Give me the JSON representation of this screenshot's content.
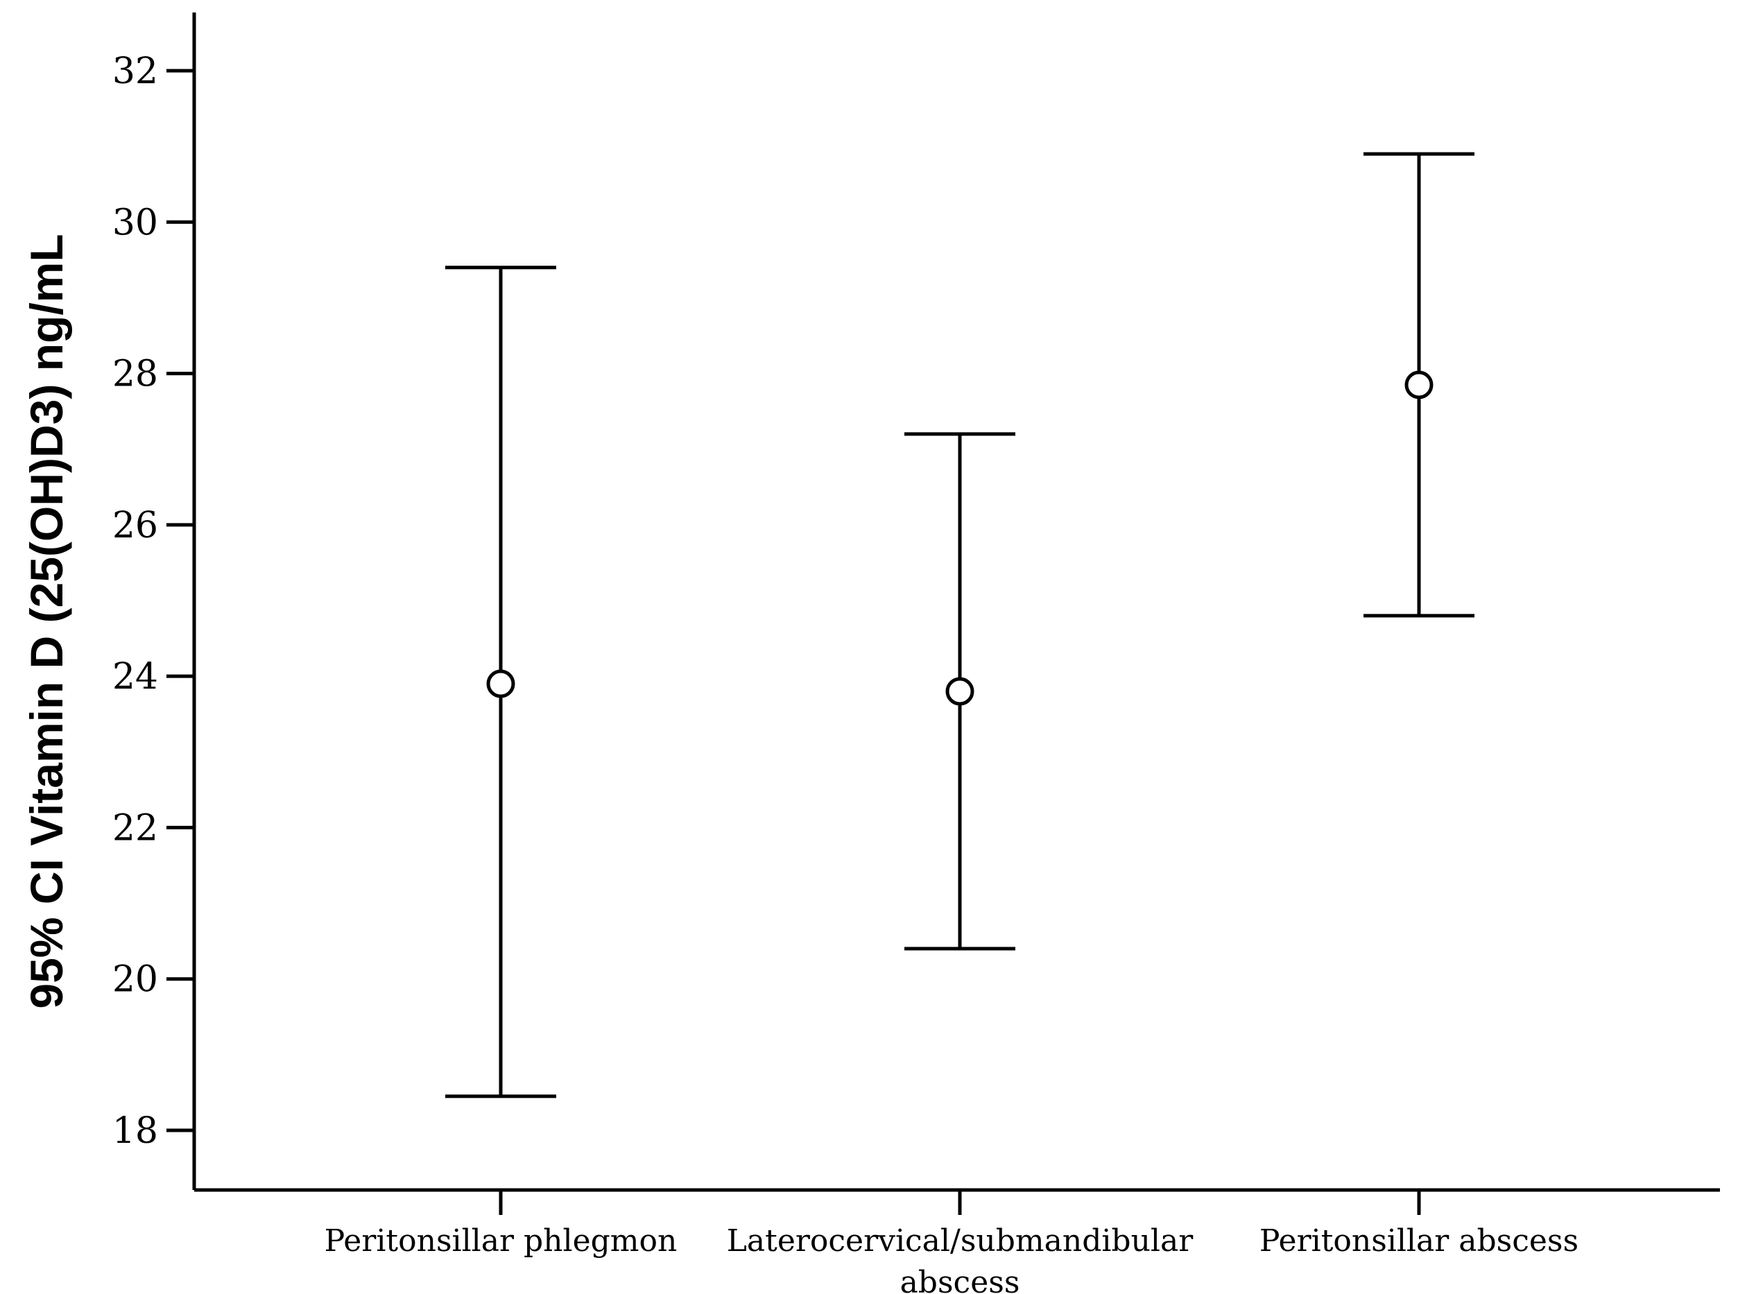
{
  "chart_data": {
    "type": "errorbar",
    "ylabel": "95% CI Vitamin D (25(OH)D3) ng/mL",
    "ylim": [
      17,
      32.8
    ],
    "yticks": [
      18,
      20,
      22,
      24,
      26,
      28,
      30,
      32
    ],
    "categories": [
      [
        "Peritonsillar phlegmon"
      ],
      [
        "Laterocervical/submandibular",
        "abscess"
      ],
      [
        "Peritonsillar abscess"
      ]
    ],
    "points": [
      {
        "mean": 23.9,
        "lower": 18.45,
        "upper": 29.4
      },
      {
        "mean": 23.8,
        "lower": 20.4,
        "upper": 27.2
      },
      {
        "mean": 27.85,
        "lower": 24.8,
        "upper": 30.9
      }
    ],
    "grid": false
  }
}
